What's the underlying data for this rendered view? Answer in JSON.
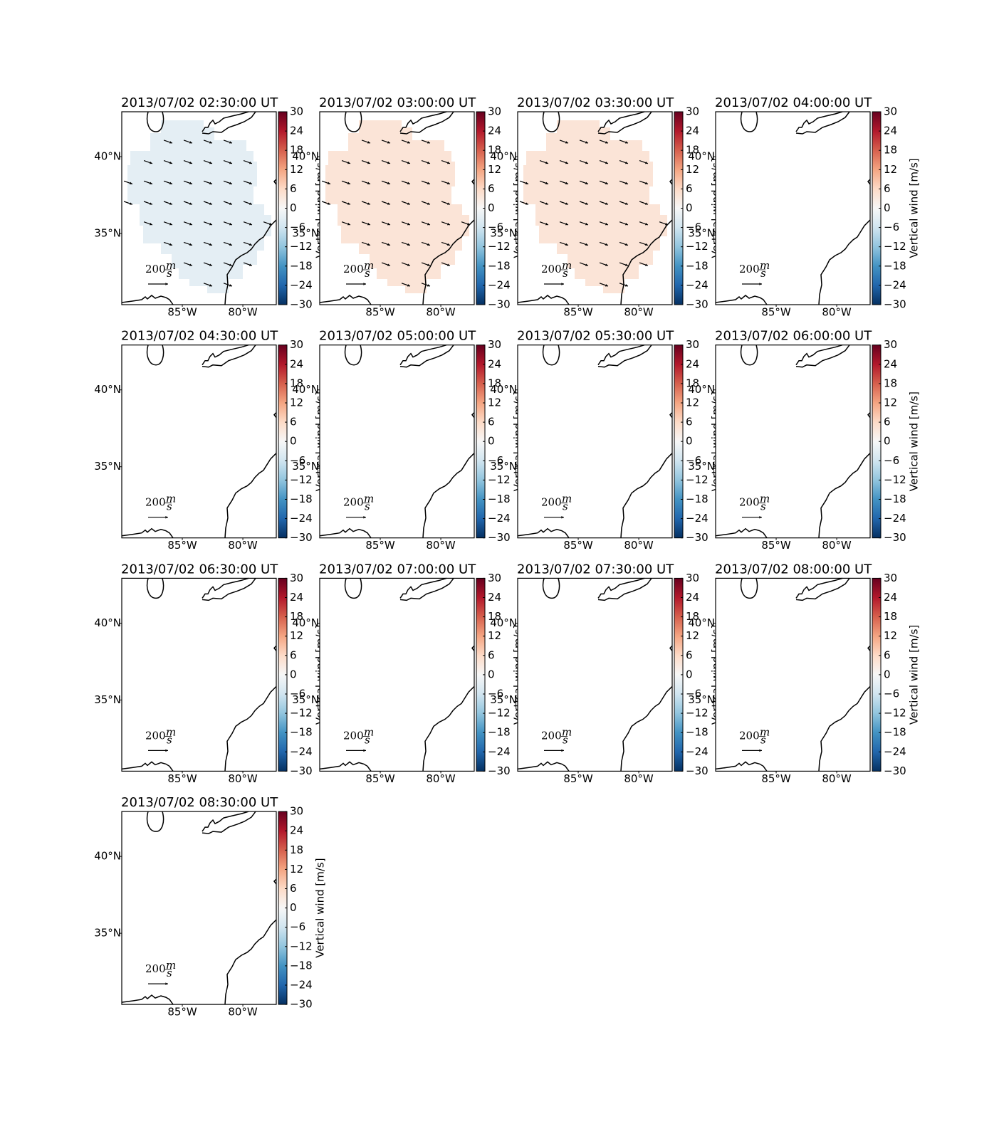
{
  "chart_data": {
    "type": "map",
    "xlim": [
      -90,
      -77.24
    ],
    "ylim": [
      30.37,
      42.92
    ],
    "xticks": [
      {
        "value": -85,
        "label": "85°W"
      },
      {
        "value": -80,
        "label": "80°W"
      }
    ],
    "yticks": [
      {
        "value": 35,
        "label": "35°N"
      },
      {
        "value": 40,
        "label": "40°N"
      }
    ],
    "colorbar": {
      "label": "Vertical wind [m/s]",
      "lim": [
        -30,
        30
      ],
      "ticks": [
        30,
        24,
        18,
        12,
        6,
        0,
        {
          "value": -6,
          "label": "−6"
        },
        {
          "value": -12,
          "label": "−12"
        },
        {
          "value": -18,
          "label": "−18"
        },
        {
          "value": -24,
          "label": "−24"
        },
        {
          "value": -30,
          "label": "−30"
        }
      ],
      "colors": [
        "#053061",
        "#2166ac",
        "#4393c3",
        "#92c5de",
        "#d1e5f0",
        "#f7f7f7",
        "#fddbc7",
        "#f4a582",
        "#d6604d",
        "#b2182b",
        "#67001f"
      ]
    },
    "quiver_key": {
      "value": 200,
      "units": {
        "numerator": "m",
        "denominator": "s"
      }
    },
    "panels": [
      {
        "title": "2013/07/02 02:30:00 UT",
        "field": -3,
        "wind": [
          85,
          -30
        ]
      },
      {
        "title": "2013/07/02 03:00:00 UT",
        "field": 4,
        "wind": [
          85,
          -30
        ]
      },
      {
        "title": "2013/07/02 03:30:00 UT",
        "field": 4,
        "wind": [
          85,
          -30
        ]
      },
      {
        "title": "2013/07/02 04:00:00 UT",
        "field": null,
        "wind": null
      },
      {
        "title": "2013/07/02 04:30:00 UT",
        "field": null,
        "wind": null
      },
      {
        "title": "2013/07/02 05:00:00 UT",
        "field": null,
        "wind": null
      },
      {
        "title": "2013/07/02 05:30:00 UT",
        "field": null,
        "wind": null
      },
      {
        "title": "2013/07/02 06:00:00 UT",
        "field": null,
        "wind": null
      },
      {
        "title": "2013/07/02 06:30:00 UT",
        "field": null,
        "wind": null
      },
      {
        "title": "2013/07/02 07:00:00 UT",
        "field": null,
        "wind": null
      },
      {
        "title": "2013/07/02 07:30:00 UT",
        "field": null,
        "wind": null
      },
      {
        "title": "2013/07/02 08:00:00 UT",
        "field": null,
        "wind": null
      },
      {
        "title": "2013/07/02 08:30:00 UT",
        "field": null,
        "wind": null
      }
    ]
  }
}
